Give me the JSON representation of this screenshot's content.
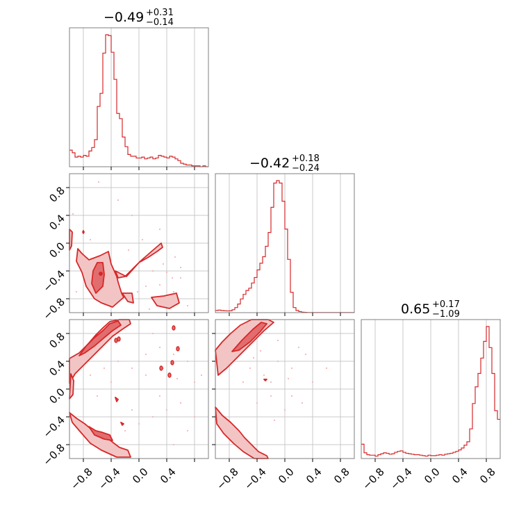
{
  "colors": {
    "series": "#d62728",
    "fill_inner": "#e26d6e",
    "fill_outer": "#f3c4c4",
    "scatter": "#f4b4b8",
    "grid": "#c8c8c8",
    "frame": "#7f7f7f"
  },
  "chart_data": {
    "type": "corner",
    "range": [
      -1.0,
      1.0
    ],
    "yticks": [
      "−0.8",
      "−0.4",
      "0.0",
      "0.4",
      "0.8"
    ],
    "xticks": {
      "col0": [
        "−0.8",
        "−0.4",
        "0.0",
        "0.4"
      ],
      "col1": [
        "−0.8",
        "−0.4",
        "0.0",
        "0.4",
        "0.8"
      ],
      "col2": [
        "−0.8",
        "−0.4",
        "0.0",
        "0.4",
        "0.8"
      ]
    },
    "grid": true,
    "marginal_titles": [
      {
        "median": "−0.49",
        "plus": "+0.31",
        "minus": "−0.14"
      },
      {
        "median": "−0.42",
        "plus": "+0.18",
        "minus": "−0.24"
      },
      {
        "median": "0.65",
        "plus": "+0.17",
        "minus": "−1.09"
      }
    ],
    "histograms": [
      {
        "bin_start": -1.0,
        "bin_width": 0.04,
        "counts": [
          19,
          16,
          11,
          12,
          11,
          13,
          12,
          18,
          22,
          31,
          69,
          84,
          130,
          151,
          150,
          131,
          100,
          61,
          55,
          34,
          23,
          14,
          12,
          12,
          10,
          10,
          11,
          9,
          10,
          11,
          9,
          10,
          13,
          12,
          11,
          10,
          12,
          11,
          9,
          7,
          4,
          3,
          2,
          2,
          1,
          1,
          1,
          0,
          1,
          0
        ]
      },
      {
        "bin_start": -1.0,
        "bin_width": 0.04,
        "counts": [
          18,
          21,
          17,
          15,
          14,
          15,
          24,
          42,
          71,
          113,
          151,
          183,
          202,
          245,
          290,
          353,
          408,
          462,
          548,
          662,
          870,
          1070,
          1090,
          1070,
          920,
          690,
          440,
          168,
          42,
          18,
          9,
          4,
          2,
          1,
          1,
          1,
          1,
          1,
          1,
          1,
          1,
          1,
          1,
          1,
          1,
          1,
          1,
          1,
          1,
          1
        ]
      },
      {
        "bin_start": -1.0,
        "bin_width": 0.04,
        "counts": [
          30,
          12,
          8,
          7,
          7,
          5,
          8,
          10,
          12,
          11,
          9,
          10,
          13,
          15,
          16,
          13,
          11,
          10,
          9,
          8,
          8,
          7,
          6,
          5,
          7,
          6,
          6,
          7,
          8,
          7,
          9,
          10,
          11,
          13,
          15,
          18,
          22,
          28,
          35,
          62,
          115,
          150,
          178,
          210,
          245,
          276,
          232,
          178,
          100,
          82
        ]
      }
    ],
    "contours": {
      "p10": {
        "inner": [
          [
            [
              -0.62,
              -0.72
            ],
            [
              -0.52,
              -0.62
            ],
            [
              -0.5,
              -0.45
            ],
            [
              -0.52,
              -0.28
            ],
            [
              -0.6,
              -0.28
            ],
            [
              -0.66,
              -0.4
            ],
            [
              -0.68,
              -0.58
            ]
          ]
        ],
        "outer": [
          [
            [
              -0.88,
              -0.08
            ],
            [
              -0.82,
              -0.15
            ],
            [
              -0.72,
              -0.24
            ],
            [
              -0.56,
              -0.18
            ],
            [
              -0.44,
              -0.12
            ],
            [
              -0.4,
              -0.3
            ],
            [
              -0.32,
              -0.48
            ],
            [
              -0.3,
              -0.56
            ],
            [
              -0.25,
              -0.72
            ],
            [
              -0.22,
              -0.78
            ],
            [
              -0.38,
              -0.92
            ],
            [
              -0.54,
              -0.86
            ],
            [
              -0.64,
              -0.8
            ],
            [
              -0.76,
              -0.62
            ],
            [
              -0.82,
              -0.42
            ],
            [
              -0.9,
              -0.26
            ]
          ],
          [
            [
              -0.34,
              -0.4
            ],
            [
              -0.18,
              -0.48
            ],
            [
              0.0,
              -0.28
            ],
            [
              0.14,
              -0.2
            ],
            [
              0.26,
              -0.12
            ],
            [
              0.34,
              -0.06
            ],
            [
              0.32,
              0.0
            ],
            [
              0.18,
              -0.12
            ],
            [
              0.02,
              -0.26
            ],
            [
              -0.2,
              -0.48
            ],
            [
              -0.3,
              -0.5
            ]
          ],
          [
            [
              0.18,
              -0.78
            ],
            [
              0.36,
              -0.76
            ],
            [
              0.54,
              -0.72
            ],
            [
              0.58,
              -0.86
            ],
            [
              0.44,
              -0.94
            ],
            [
              0.26,
              -0.9
            ]
          ],
          [
            [
              -0.24,
              -0.72
            ],
            [
              -0.16,
              -0.84
            ],
            [
              -0.08,
              -0.86
            ],
            [
              -0.1,
              -0.72
            ]
          ],
          [
            [
              -1.0,
              0.2
            ],
            [
              -0.96,
              0.16
            ],
            [
              -0.97,
              -0.04
            ],
            [
              -1.0,
              -0.1
            ]
          ],
          [
            [
              -0.8,
              0.18
            ],
            [
              -0.79,
              0.16
            ],
            [
              -0.8,
              0.14
            ],
            [
              -0.81,
              0.16
            ]
          ]
        ]
      },
      "p20": {
        "inner": [
          [
            [
              -0.86,
              0.48
            ],
            [
              -0.76,
              0.62
            ],
            [
              -0.64,
              0.74
            ],
            [
              -0.52,
              0.84
            ],
            [
              -0.42,
              0.94
            ],
            [
              -0.3,
              0.98
            ],
            [
              -0.26,
              0.92
            ],
            [
              -0.38,
              0.84
            ],
            [
              -0.5,
              0.74
            ],
            [
              -0.64,
              0.62
            ],
            [
              -0.78,
              0.52
            ]
          ],
          [
            [
              -0.72,
              -0.54
            ],
            [
              -0.62,
              -0.6
            ],
            [
              -0.54,
              -0.62
            ],
            [
              -0.42,
              -0.66
            ],
            [
              -0.38,
              -0.74
            ],
            [
              -0.5,
              -0.72
            ],
            [
              -0.64,
              -0.66
            ]
          ]
        ],
        "outer": [
          [
            [
              -1.0,
              0.44
            ],
            [
              -0.86,
              0.52
            ],
            [
              -0.74,
              0.64
            ],
            [
              -0.62,
              0.78
            ],
            [
              -0.52,
              0.88
            ],
            [
              -0.42,
              0.97
            ],
            [
              -0.28,
              1.0
            ],
            [
              -0.14,
              1.0
            ],
            [
              -0.12,
              0.94
            ],
            [
              -0.24,
              0.86
            ],
            [
              -0.38,
              0.76
            ],
            [
              -0.5,
              0.64
            ],
            [
              -0.66,
              0.48
            ],
            [
              -0.8,
              0.34
            ],
            [
              -0.92,
              0.22
            ],
            [
              -1.0,
              0.08
            ]
          ],
          [
            [
              -1.0,
              -0.34
            ],
            [
              -0.9,
              -0.42
            ],
            [
              -0.78,
              -0.5
            ],
            [
              -0.66,
              -0.6
            ],
            [
              -0.54,
              -0.62
            ],
            [
              -0.46,
              -0.7
            ],
            [
              -0.36,
              -0.78
            ],
            [
              -0.28,
              -0.84
            ],
            [
              -0.16,
              -0.88
            ],
            [
              -0.12,
              -0.98
            ],
            [
              -0.32,
              -0.98
            ],
            [
              -0.54,
              -0.88
            ],
            [
              -0.7,
              -0.78
            ],
            [
              -0.84,
              -0.62
            ],
            [
              -0.96,
              -0.48
            ]
          ],
          [
            [
              -0.98,
              0.22
            ],
            [
              -0.94,
              0.12
            ],
            [
              -0.95,
              -0.08
            ],
            [
              -1.0,
              -0.14
            ]
          ],
          [
            [
              -0.34,
              -0.12
            ],
            [
              -0.32,
              -0.18
            ],
            [
              -0.3,
              -0.15
            ]
          ],
          [
            [
              -0.26,
              -0.48
            ],
            [
              -0.24,
              -0.52
            ],
            [
              -0.22,
              -0.5
            ]
          ]
        ]
      },
      "p21": {
        "inner": [
          [
            [
              -0.76,
              0.54
            ],
            [
              -0.62,
              0.7
            ],
            [
              -0.46,
              0.86
            ],
            [
              -0.34,
              0.96
            ],
            [
              -0.26,
              0.94
            ],
            [
              -0.36,
              0.82
            ],
            [
              -0.5,
              0.68
            ],
            [
              -0.66,
              0.56
            ]
          ]
        ],
        "outer": [
          [
            [
              -1.0,
              0.56
            ],
            [
              -0.9,
              0.68
            ],
            [
              -0.78,
              0.8
            ],
            [
              -0.64,
              0.92
            ],
            [
              -0.48,
              1.0
            ],
            [
              -0.24,
              1.0
            ],
            [
              -0.16,
              0.96
            ],
            [
              -0.3,
              0.84
            ],
            [
              -0.44,
              0.7
            ],
            [
              -0.58,
              0.56
            ],
            [
              -0.7,
              0.44
            ],
            [
              -0.84,
              0.3
            ],
            [
              -0.96,
              0.2
            ]
          ],
          [
            [
              -1.0,
              -0.26
            ],
            [
              -0.9,
              -0.38
            ],
            [
              -0.78,
              -0.48
            ],
            [
              -0.66,
              -0.6
            ],
            [
              -0.58,
              -0.7
            ],
            [
              -0.48,
              -0.8
            ],
            [
              -0.38,
              -0.9
            ],
            [
              -0.26,
              -0.96
            ],
            [
              -0.24,
              -1.0
            ],
            [
              -0.44,
              -1.0
            ],
            [
              -0.6,
              -0.9
            ],
            [
              -0.74,
              -0.78
            ],
            [
              -0.88,
              -0.64
            ],
            [
              -0.98,
              -0.5
            ]
          ],
          [
            [
              -0.3,
              0.14
            ],
            [
              -0.28,
              0.12
            ],
            [
              -0.26,
              0.14
            ]
          ]
        ]
      }
    },
    "scatter": {
      "p10": [
        [
          -0.95,
          0.42
        ],
        [
          -0.58,
          0.88
        ],
        [
          -0.3,
          0.62
        ],
        [
          -0.1,
          0.4
        ],
        [
          0.3,
          0.2
        ],
        [
          0.52,
          -0.2
        ],
        [
          0.6,
          -0.35
        ],
        [
          0.48,
          -0.5
        ],
        [
          0.3,
          -0.6
        ],
        [
          0.1,
          -0.62
        ],
        [
          -0.02,
          -0.7
        ],
        [
          0.2,
          -0.4
        ],
        [
          0.4,
          -0.42
        ],
        [
          0.6,
          -0.5
        ],
        [
          -0.15,
          -0.1
        ],
        [
          0.05,
          0.05
        ],
        [
          -0.7,
          0.05
        ],
        [
          -0.9,
          -0.7
        ],
        [
          0.7,
          -0.9
        ],
        [
          0.15,
          -0.95
        ],
        [
          0.35,
          -0.3
        ],
        [
          0.5,
          -0.7
        ]
      ],
      "p20": [
        [
          -0.7,
          0.2
        ],
        [
          -0.5,
          0.3
        ],
        [
          -0.3,
          0.4
        ],
        [
          -0.1,
          0.3
        ],
        [
          0.1,
          0.2
        ],
        [
          0.3,
          0.6
        ],
        [
          0.5,
          0.5
        ],
        [
          0.7,
          0.4
        ],
        [
          0.8,
          0.1
        ],
        [
          0.6,
          -0.2
        ],
        [
          0.4,
          -0.3
        ],
        [
          0.2,
          -0.4
        ],
        [
          0.0,
          -0.5
        ],
        [
          -0.2,
          -0.6
        ],
        [
          0.5,
          -0.8
        ],
        [
          0.7,
          -0.6
        ],
        [
          0.8,
          -0.4
        ],
        [
          0.3,
          -0.1
        ],
        [
          0.1,
          0.5
        ],
        [
          -0.4,
          0.1
        ],
        [
          -0.6,
          -0.1
        ],
        [
          0.9,
          0.2
        ],
        [
          0.2,
          0.8
        ],
        [
          -0.1,
          -0.3
        ],
        [
          0.55,
          0.15
        ],
        [
          0.35,
          0.3
        ]
      ],
      "p21": [
        [
          -0.5,
          0.3
        ],
        [
          -0.3,
          0.2
        ],
        [
          -0.1,
          0.4
        ],
        [
          0.1,
          0.3
        ],
        [
          0.3,
          0.5
        ],
        [
          -0.2,
          -0.1
        ],
        [
          0.0,
          -0.3
        ],
        [
          -0.4,
          -0.2
        ],
        [
          -0.6,
          0.1
        ],
        [
          -0.1,
          0.7
        ],
        [
          0.2,
          0.6
        ],
        [
          0.4,
          0.1
        ],
        [
          0.6,
          0.3
        ],
        [
          -0.2,
          0.1
        ],
        [
          0.1,
          -0.1
        ],
        [
          -0.35,
          0.55
        ],
        [
          0.05,
          0.15
        ],
        [
          -0.15,
          -0.45
        ],
        [
          0.25,
          -0.2
        ],
        [
          -0.45,
          0.45
        ]
      ]
    }
  }
}
